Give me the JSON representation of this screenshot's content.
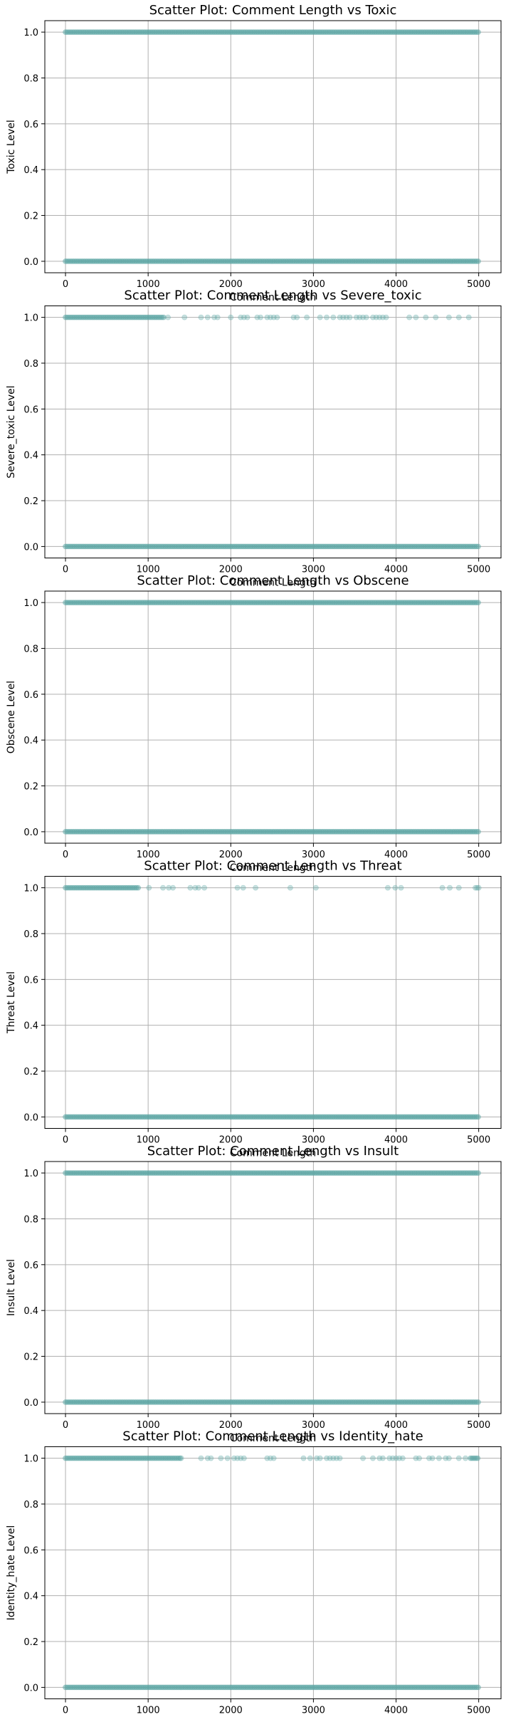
{
  "figure": {
    "marker_color": "#5FA8A6",
    "marker_edge_color": "#4E9E9A",
    "grid_color": "#b0b0b0"
  },
  "chart_data": [
    {
      "type": "scatter",
      "title": "Scatter Plot: Comment Length vs Toxic",
      "xlabel": "Comment Length",
      "ylabel": "Toxic Level",
      "xlim": [
        -250,
        5270
      ],
      "ylim": [
        -0.05,
        1.05
      ],
      "xticks": [
        0,
        1000,
        2000,
        3000,
        4000,
        5000
      ],
      "yticks": [
        0.0,
        0.2,
        0.4,
        0.6,
        0.8,
        1.0
      ],
      "grid": true,
      "series": [
        {
          "y": 1,
          "ranges": [
            [
              0,
              5000
            ]
          ],
          "density": "dense"
        },
        {
          "y": 0,
          "ranges": [
            [
              0,
              5000
            ]
          ],
          "density": "dense"
        }
      ]
    },
    {
      "type": "scatter",
      "title": "Scatter Plot: Comment Length vs Severe_toxic",
      "xlabel": "Comment Length",
      "ylabel": "Severe_toxic Level",
      "xlim": [
        -250,
        5270
      ],
      "ylim": [
        -0.05,
        1.05
      ],
      "xticks": [
        0,
        1000,
        2000,
        3000,
        4000,
        5000
      ],
      "yticks": [
        0.0,
        0.2,
        0.4,
        0.6,
        0.8,
        1.0
      ],
      "grid": true,
      "series": [
        {
          "y": 1,
          "ranges": [
            [
              0,
              1200
            ]
          ],
          "density": "dense"
        },
        {
          "y": 1,
          "ranges": [
            [
              1200,
              5000
            ]
          ],
          "density": "sparse"
        },
        {
          "y": 0,
          "ranges": [
            [
              0,
              5000
            ]
          ],
          "density": "dense"
        }
      ]
    },
    {
      "type": "scatter",
      "title": "Scatter Plot: Comment Length vs Obscene",
      "xlabel": "Comment Length",
      "ylabel": "Obscene Level",
      "xlim": [
        -250,
        5270
      ],
      "ylim": [
        -0.05,
        1.05
      ],
      "xticks": [
        0,
        1000,
        2000,
        3000,
        4000,
        5000
      ],
      "yticks": [
        0.0,
        0.2,
        0.4,
        0.6,
        0.8,
        1.0
      ],
      "grid": true,
      "series": [
        {
          "y": 1,
          "ranges": [
            [
              0,
              5000
            ]
          ],
          "density": "dense"
        },
        {
          "y": 0,
          "ranges": [
            [
              0,
              5000
            ]
          ],
          "density": "dense"
        }
      ]
    },
    {
      "type": "scatter",
      "title": "Scatter Plot: Comment Length vs Threat",
      "xlabel": "Comment Length",
      "ylabel": "Threat Level",
      "xlim": [
        -250,
        5270
      ],
      "ylim": [
        -0.05,
        1.05
      ],
      "xticks": [
        0,
        1000,
        2000,
        3000,
        4000,
        5000
      ],
      "yticks": [
        0.0,
        0.2,
        0.4,
        0.6,
        0.8,
        1.0
      ],
      "grid": true,
      "series": [
        {
          "y": 1,
          "ranges": [
            [
              0,
              880
            ]
          ],
          "density": "dense"
        },
        {
          "y": 1,
          "points": [
            1010,
            1180,
            1250,
            1300,
            1510,
            1570,
            1610,
            1680,
            2080,
            2150,
            2300,
            2720,
            3030,
            3900,
            3990,
            4060,
            4560,
            4650,
            4760,
            4960,
            4980,
            5000
          ]
        },
        {
          "y": 0,
          "ranges": [
            [
              0,
              5000
            ]
          ],
          "density": "dense"
        }
      ]
    },
    {
      "type": "scatter",
      "title": "Scatter Plot: Comment Length vs Insult",
      "xlabel": "Comment Length",
      "ylabel": "Insult Level",
      "xlim": [
        -250,
        5270
      ],
      "ylim": [
        -0.05,
        1.05
      ],
      "xticks": [
        0,
        1000,
        2000,
        3000,
        4000,
        5000
      ],
      "yticks": [
        0.0,
        0.2,
        0.4,
        0.6,
        0.8,
        1.0
      ],
      "grid": true,
      "series": [
        {
          "y": 1,
          "ranges": [
            [
              0,
              5000
            ]
          ],
          "density": "dense"
        },
        {
          "y": 0,
          "ranges": [
            [
              0,
              5000
            ]
          ],
          "density": "dense"
        }
      ]
    },
    {
      "type": "scatter",
      "title": "Scatter Plot: Comment Length vs Identity_hate",
      "xlabel": "Comment Length",
      "ylabel": "Identity_hate Level",
      "xlim": [
        -250,
        5270
      ],
      "ylim": [
        -0.05,
        1.05
      ],
      "xticks": [
        0,
        1000,
        2000,
        3000,
        4000,
        5000
      ],
      "yticks": [
        0.0,
        0.2,
        0.4,
        0.6,
        0.8,
        1.0
      ],
      "grid": true,
      "series": [
        {
          "y": 1,
          "ranges": [
            [
              0,
              1400
            ]
          ],
          "density": "dense"
        },
        {
          "y": 1,
          "ranges": [
            [
              1400,
              4900
            ]
          ],
          "density": "sparse"
        },
        {
          "y": 1,
          "ranges": [
            [
              4900,
              5000
            ]
          ],
          "density": "dense"
        },
        {
          "y": 0,
          "ranges": [
            [
              0,
              5000
            ]
          ],
          "density": "dense"
        }
      ]
    }
  ]
}
